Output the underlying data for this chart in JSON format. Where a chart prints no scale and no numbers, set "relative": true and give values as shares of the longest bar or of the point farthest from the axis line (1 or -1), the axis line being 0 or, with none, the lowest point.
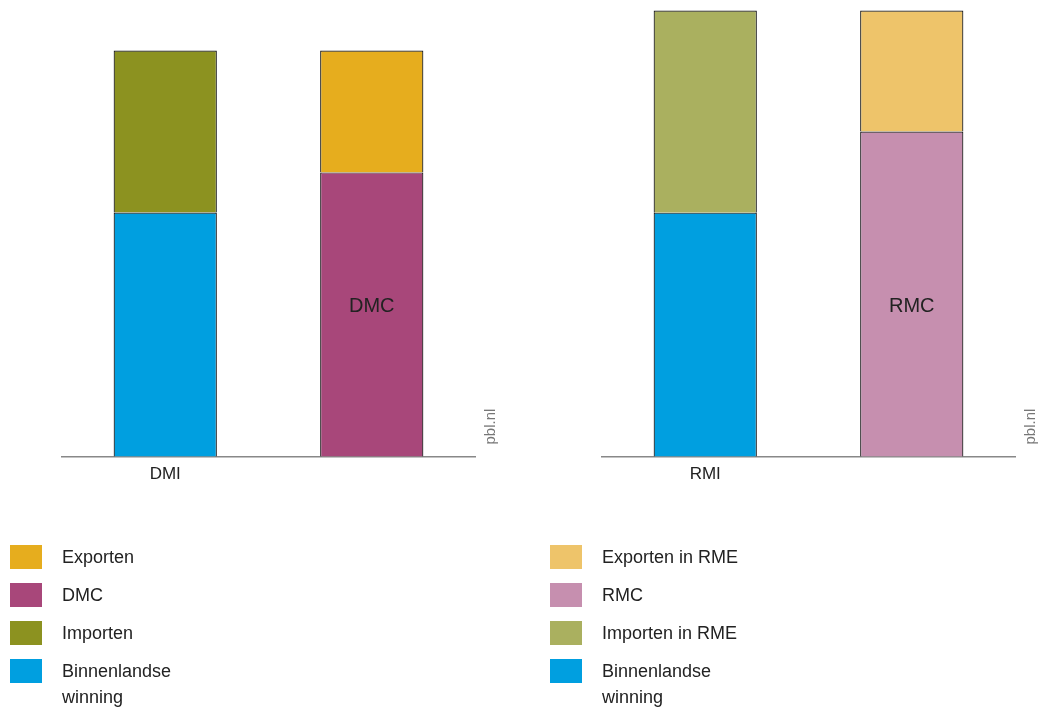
{
  "chart_data": [
    {
      "type": "bar",
      "stacked": true,
      "relative": true,
      "categories": [
        "DMI",
        null
      ],
      "legend": "bottom",
      "annotations": [
        "DMC",
        "pbl.nl"
      ],
      "series": [
        {
          "name": "Binnenlandse winning",
          "color": "#009fe0",
          "values": [
            0.601,
            null
          ]
        },
        {
          "name": "Importen",
          "color": "#8c9220",
          "values": [
            0.399,
            null
          ]
        },
        {
          "name": "DMC",
          "color": "#a8477a",
          "values": [
            null,
            0.7
          ]
        },
        {
          "name": "Exporten",
          "color": "#e6ad1e",
          "values": [
            null,
            0.3
          ]
        }
      ]
    },
    {
      "type": "bar",
      "stacked": true,
      "relative": true,
      "categories": [
        "RMI",
        null
      ],
      "legend": "bottom",
      "annotations": [
        "RMC",
        "pbl.nl"
      ],
      "series": [
        {
          "name": "Binnenlandse winning",
          "color": "#009fe0",
          "values": [
            0.547,
            null
          ]
        },
        {
          "name": "Importen in RME",
          "color": "#aab05f",
          "values": [
            0.453,
            null
          ]
        },
        {
          "name": "RMC",
          "color": "#c68faf",
          "values": [
            null,
            0.729
          ]
        },
        {
          "name": "Exporten in RME",
          "color": "#eec46a",
          "values": [
            null,
            0.271
          ]
        }
      ]
    }
  ]
}
